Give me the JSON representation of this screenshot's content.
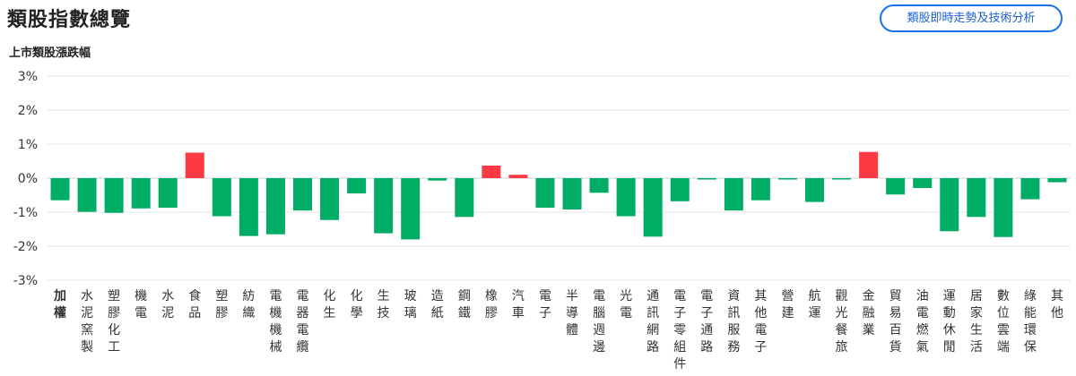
{
  "header": {
    "title": "類股指數總覽",
    "analysis_button_label": "類股即時走勢及技術分析"
  },
  "colors": {
    "up": "#fd3a44",
    "down": "#00ad65",
    "grid": "#e6e6e6",
    "axis_text": "#333333",
    "button": "#1a73e8"
  },
  "chart_data": {
    "type": "bar",
    "title": "上市類股漲跌幅",
    "ylim": [
      -3,
      3
    ],
    "yticks": [
      3,
      2,
      1,
      0,
      -1,
      -2,
      -3
    ],
    "ytick_labels": [
      "3%",
      "2%",
      "1%",
      "0%",
      "-1%",
      "-2%",
      "-3%"
    ],
    "grid": true,
    "categories": [
      "加權",
      "水泥窯製",
      "塑膠化工",
      "機電",
      "水泥",
      "食品",
      "塑膠",
      "紡織",
      "電機機械",
      "電器電纜",
      "化生",
      "化學",
      "生技",
      "玻璃",
      "造紙",
      "鋼鐵",
      "橡膠",
      "汽車",
      "電子",
      "半導體",
      "電腦週邊",
      "光電",
      "通訊網路",
      "電子零組件",
      "電子通路",
      "資訊服務",
      "其他電子",
      "營建",
      "航運",
      "觀光餐旅",
      "金融業",
      "貿易百貨",
      "油電燃氣",
      "運動休閒",
      "居家生活",
      "數位雲端",
      "綠能環保",
      "其他"
    ],
    "values": [
      -0.65,
      -0.99,
      -1.02,
      -0.89,
      -0.87,
      0.75,
      -1.12,
      -1.7,
      -1.65,
      -0.95,
      -1.23,
      -0.45,
      -1.62,
      -1.8,
      -0.07,
      -1.14,
      0.37,
      0.1,
      -0.87,
      -0.92,
      -0.43,
      -1.12,
      -1.72,
      -0.68,
      -0.04,
      -0.95,
      -0.65,
      -0.04,
      -0.7,
      -0.04,
      0.77,
      -0.48,
      -0.29,
      -1.56,
      -1.14,
      -1.73,
      -0.62,
      -0.12
    ]
  }
}
